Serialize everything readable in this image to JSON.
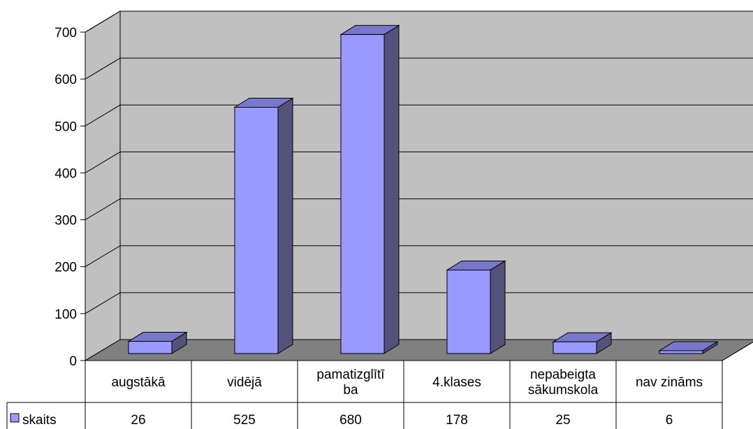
{
  "chart_data": {
    "type": "bar",
    "categories": [
      "augstākā",
      "vidējā",
      "pamatizglītība",
      "4.klases",
      "nepabeigta sākumskola",
      "nav zināms"
    ],
    "category_lines": [
      [
        "augstākā"
      ],
      [
        "vidējā"
      ],
      [
        "pamatizglītī",
        "ba"
      ],
      [
        "4.klases"
      ],
      [
        "nepabeigta",
        "sākumskola"
      ],
      [
        "nav zināms"
      ]
    ],
    "series": [
      {
        "name": "skaits",
        "values": [
          26,
          525,
          680,
          178,
          25,
          6
        ]
      }
    ],
    "value_labels": [
      "26",
      "525",
      "680",
      "178",
      "25",
      "6"
    ],
    "y_ticks": [
      "0",
      "100",
      "200",
      "300",
      "400",
      "500",
      "600",
      "700"
    ],
    "ylim": [
      0,
      700
    ],
    "grid": true,
    "legend": "data-table",
    "three_d": true,
    "colors": {
      "bar_front": "#9999FF",
      "bar_side": "#52527A",
      "bar_top": "#7777CC",
      "wall": "#C0C0C0",
      "floor": "#808080",
      "legend_key": "#9999FF"
    }
  }
}
